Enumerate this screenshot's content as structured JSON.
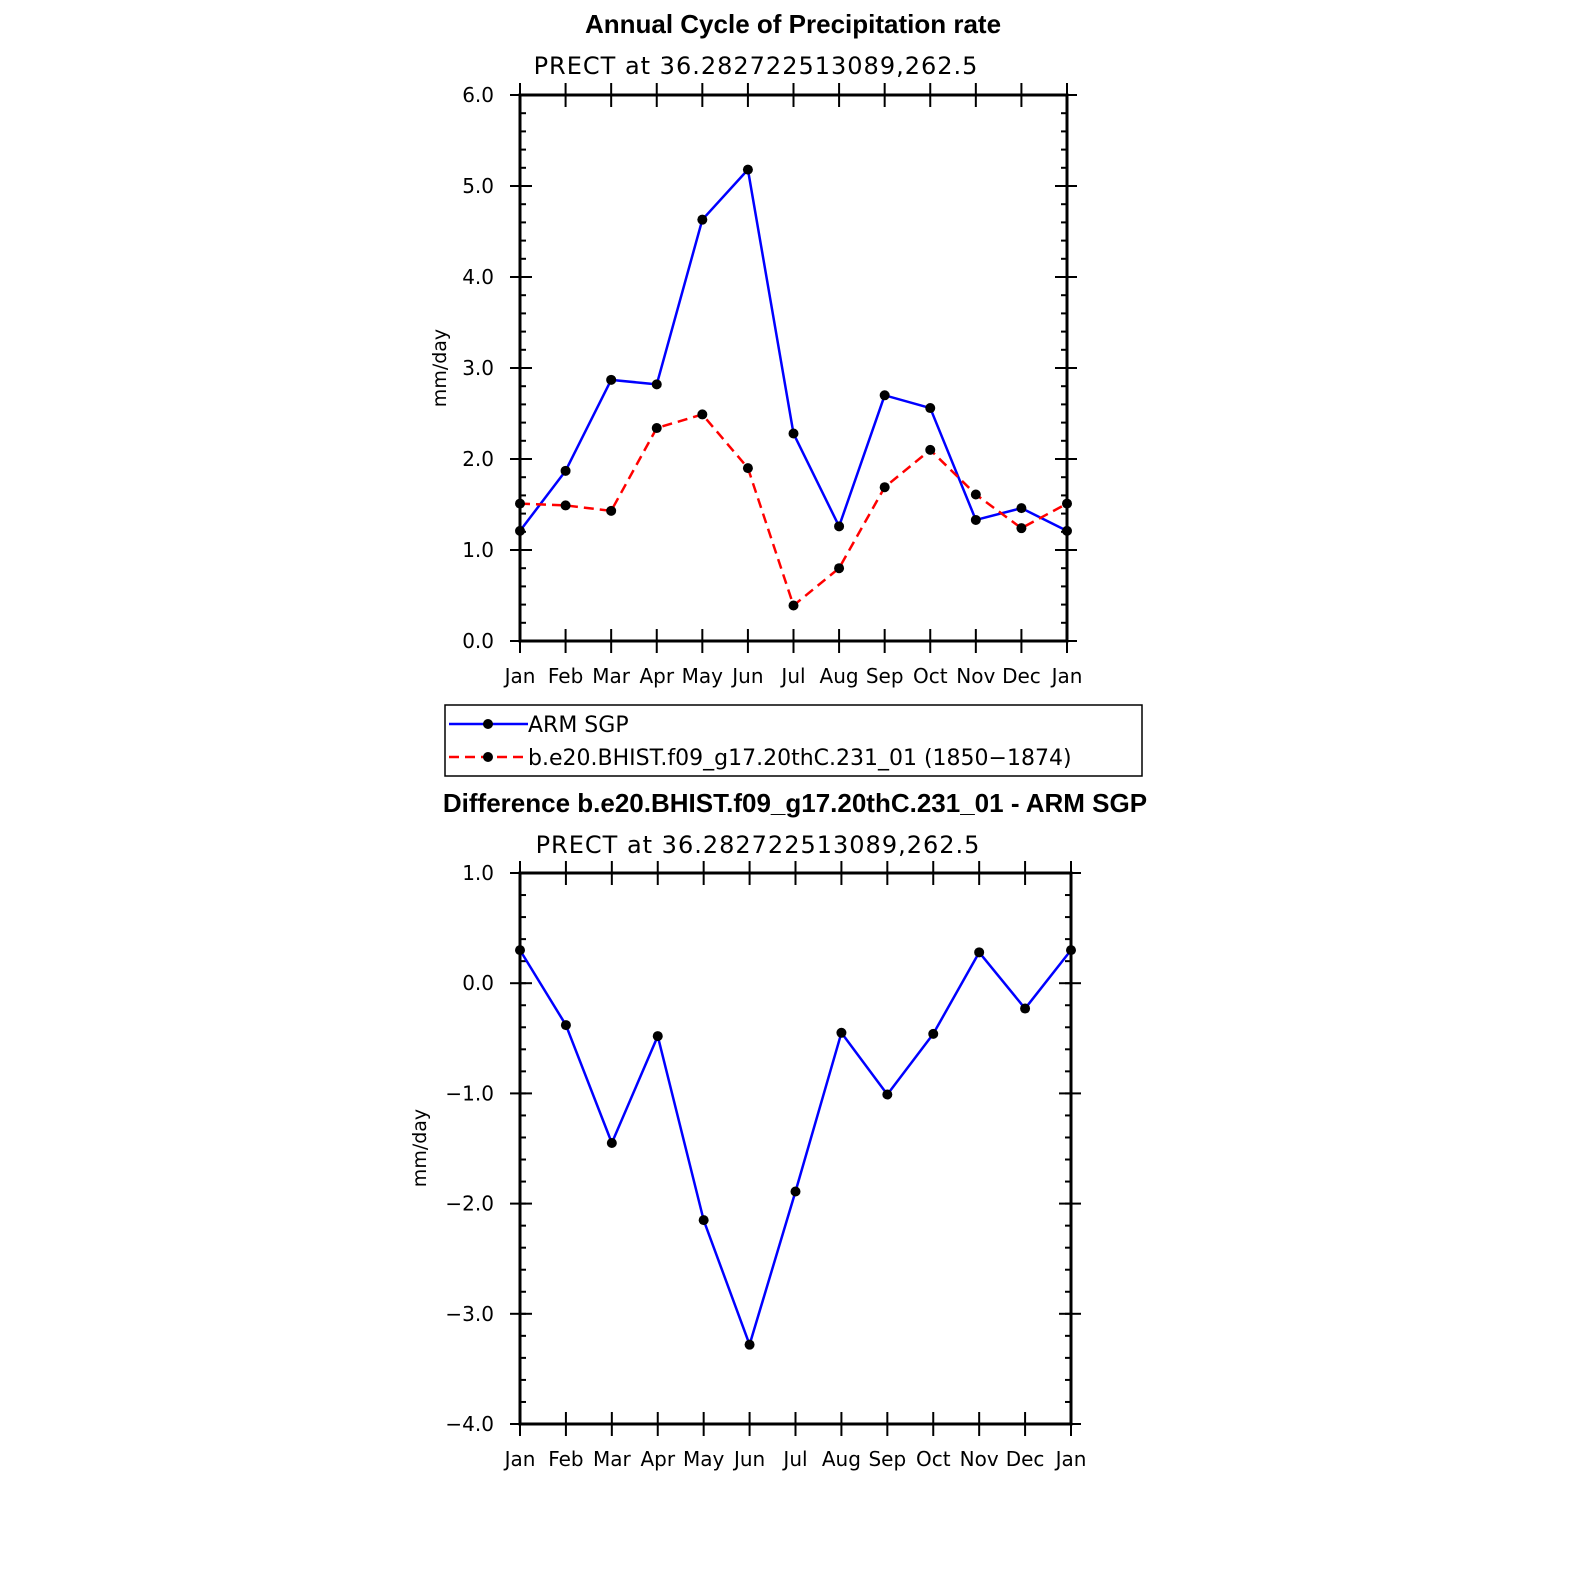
{
  "chart_data": [
    {
      "type": "line",
      "title": "Annual Cycle of Precipitation rate",
      "subtitle": "PRECT at 36.282722513089,262.5",
      "xlabel": "",
      "ylabel": "mm/day",
      "categories": [
        "Jan",
        "Feb",
        "Mar",
        "Apr",
        "May",
        "Jun",
        "Jul",
        "Aug",
        "Sep",
        "Oct",
        "Nov",
        "Dec",
        "Jan"
      ],
      "ylim": [
        0.0,
        6.0
      ],
      "yticks": [
        0.0,
        1.0,
        2.0,
        3.0,
        4.0,
        5.0,
        6.0
      ],
      "ytick_labels": [
        "0.0",
        "1.0",
        "2.0",
        "3.0",
        "4.0",
        "5.0",
        "6.0"
      ],
      "series": [
        {
          "name": "ARM SGP",
          "color": "#0000ff",
          "dash": "solid",
          "values": [
            1.21,
            1.87,
            2.87,
            2.82,
            4.63,
            5.18,
            2.28,
            1.26,
            2.7,
            2.56,
            1.33,
            1.46,
            1.21
          ]
        },
        {
          "name": "b.e20.BHIST.f09_g17.20thC.231_01 (1850-1874)",
          "color": "#ff0000",
          "dash": "dashed",
          "values": [
            1.51,
            1.49,
            1.43,
            2.34,
            2.49,
            1.9,
            0.39,
            0.8,
            1.69,
            2.1,
            1.61,
            1.24,
            1.51
          ]
        }
      ],
      "legend_labels": [
        "ARM SGP",
        "b.e20.BHIST.f09_g17.20thC.231_01 (1850−1874)"
      ],
      "legend": "below"
    },
    {
      "type": "line",
      "title": "Difference b.e20.BHIST.f09_g17.20thC.231_01 - ARM SGP",
      "subtitle": "PRECT at 36.282722513089,262.5",
      "xlabel": "",
      "ylabel": "mm/day",
      "categories": [
        "Jan",
        "Feb",
        "Mar",
        "Apr",
        "May",
        "Jun",
        "Jul",
        "Aug",
        "Sep",
        "Oct",
        "Nov",
        "Dec",
        "Jan"
      ],
      "ylim": [
        -4.0,
        1.0
      ],
      "yticks": [
        -4.0,
        -3.0,
        -2.0,
        -1.0,
        0.0,
        1.0
      ],
      "ytick_labels": [
        "−4.0",
        "−3.0",
        "−2.0",
        "−1.0",
        "0.0",
        "1.0"
      ],
      "series": [
        {
          "name": "Difference",
          "color": "#0000ff",
          "dash": "solid",
          "values": [
            0.3,
            -0.38,
            -1.45,
            -0.48,
            -2.15,
            -3.28,
            -1.89,
            -0.45,
            -1.01,
            -0.46,
            0.28,
            -0.23,
            0.3
          ]
        }
      ]
    }
  ]
}
